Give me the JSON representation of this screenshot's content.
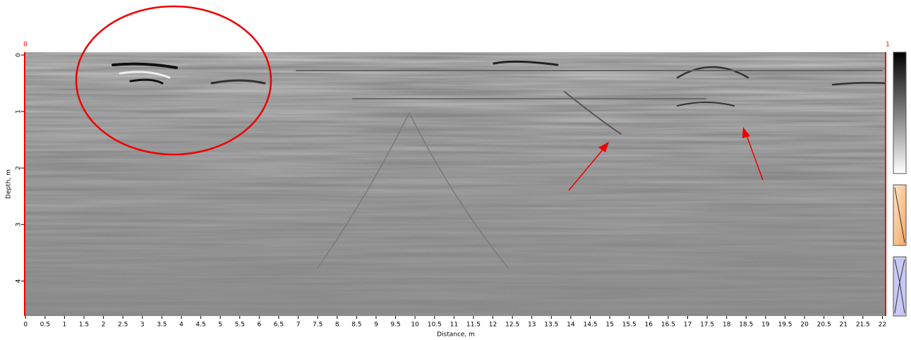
{
  "chart_data": {
    "type": "radargram",
    "xlabel": "Distance, m",
    "ylabel": "Depth, m",
    "top_markers": [
      "0",
      "1"
    ],
    "xlim": [
      -0.04,
      22.1
    ],
    "xticks": [
      0,
      0.5,
      1,
      1.5,
      2,
      2.5,
      3,
      3.5,
      4,
      4.5,
      5,
      5.5,
      6,
      6.5,
      7,
      7.5,
      8,
      8.5,
      9,
      9.5,
      10,
      10.5,
      11,
      11.5,
      12,
      12.5,
      13,
      13.5,
      14,
      14.5,
      15,
      15.5,
      16,
      16.5,
      17,
      17.5,
      18,
      18.5,
      19,
      19.5,
      20,
      20.5,
      21,
      21.5,
      22
    ],
    "ylim": [
      -0.05,
      4.62
    ],
    "yticks": [
      0,
      1,
      2,
      3,
      4
    ]
  }
}
